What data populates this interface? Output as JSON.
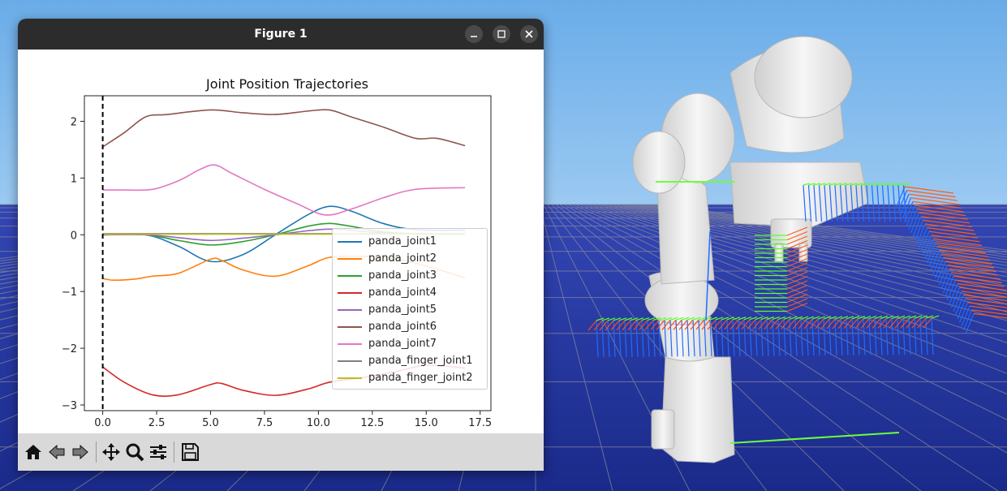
{
  "window": {
    "title": "Figure 1",
    "minimize_icon": "minimize-icon",
    "maximize_icon": "maximize-icon",
    "close_icon": "close-icon"
  },
  "toolbar": {
    "buttons": [
      "home-icon",
      "back-arrow-icon",
      "forward-arrow-icon",
      "pan-icon",
      "zoom-icon",
      "configure-subplots-icon",
      "save-icon"
    ]
  },
  "colors": {
    "sky_top": "#6aace8",
    "floor": "#2436a0",
    "grid": "#8c8c9c"
  },
  "chart_data": {
    "type": "line",
    "title": "Joint Position Trajectories",
    "xlim": [
      -0.85,
      18.0
    ],
    "ylim": [
      -3.1,
      2.45
    ],
    "xticks": [
      0.0,
      2.5,
      5.0,
      7.5,
      10.0,
      12.5,
      15.0,
      17.5
    ],
    "xtick_labels": [
      "0.0",
      "2.5",
      "5.0",
      "7.5",
      "10.0",
      "12.5",
      "15.0",
      "17.5"
    ],
    "yticks": [
      -3,
      -2,
      -1,
      0,
      1,
      2
    ],
    "ytick_labels": [
      "−3",
      "−2",
      "−1",
      "0",
      "1",
      "2"
    ],
    "vline_x": 0.0,
    "legend_position": "lower-right",
    "series": [
      {
        "name": "panda_joint1",
        "color": "#1f77b4",
        "x": [
          0.0,
          2.0,
          3.5,
          5.0,
          6.5,
          8.0,
          9.5,
          10.5,
          11.5,
          13.0,
          14.5,
          16.8
        ],
        "y": [
          0.0,
          0.0,
          -0.2,
          -0.47,
          -0.35,
          0.0,
          0.35,
          0.5,
          0.42,
          0.2,
          0.09,
          0.08
        ]
      },
      {
        "name": "panda_joint2",
        "color": "#ff7f0e",
        "x": [
          0.0,
          0.5,
          1.5,
          2.3,
          3.5,
          5.0,
          5.5,
          6.5,
          8.0,
          9.5,
          10.5,
          12.0,
          13.5,
          15.0,
          16.8
        ],
        "y": [
          -0.77,
          -0.8,
          -0.78,
          -0.73,
          -0.68,
          -0.43,
          -0.45,
          -0.62,
          -0.73,
          -0.55,
          -0.4,
          -0.38,
          -0.42,
          -0.55,
          -0.76
        ]
      },
      {
        "name": "panda_joint3",
        "color": "#2ca02c",
        "x": [
          0.0,
          2.0,
          3.5,
          5.0,
          6.5,
          8.0,
          9.5,
          10.5,
          11.5,
          13.0,
          14.5,
          16.8
        ],
        "y": [
          0.0,
          0.0,
          -0.1,
          -0.18,
          -0.12,
          0.0,
          0.15,
          0.2,
          0.15,
          0.05,
          0.02,
          0.02
        ]
      },
      {
        "name": "panda_joint4",
        "color": "#d62728",
        "x": [
          0.0,
          1.0,
          2.3,
          3.5,
          5.0,
          5.5,
          6.5,
          8.0,
          9.5,
          10.5,
          12.0,
          13.5,
          15.0,
          16.8
        ],
        "y": [
          -2.33,
          -2.6,
          -2.82,
          -2.82,
          -2.64,
          -2.62,
          -2.74,
          -2.83,
          -2.72,
          -2.6,
          -2.52,
          -2.42,
          -2.3,
          -2.35
        ]
      },
      {
        "name": "panda_joint5",
        "color": "#9467bd",
        "x": [
          0.0,
          2.0,
          3.5,
          5.0,
          6.5,
          8.0,
          9.5,
          10.5,
          11.5,
          13.0,
          14.5,
          16.8
        ],
        "y": [
          0.0,
          0.0,
          -0.05,
          -0.1,
          -0.06,
          0.0,
          0.07,
          0.1,
          0.08,
          0.03,
          0.01,
          0.01
        ]
      },
      {
        "name": "panda_joint6",
        "color": "#8c564b",
        "x": [
          0.0,
          1.0,
          2.0,
          3.0,
          5.0,
          6.5,
          8.0,
          9.5,
          10.5,
          11.5,
          13.0,
          14.5,
          15.5,
          16.8
        ],
        "y": [
          1.55,
          1.8,
          2.08,
          2.12,
          2.2,
          2.15,
          2.12,
          2.18,
          2.2,
          2.08,
          1.9,
          1.7,
          1.7,
          1.57
        ]
      },
      {
        "name": "panda_joint7",
        "color": "#e377c2",
        "x": [
          0.0,
          1.0,
          2.3,
          3.5,
          4.5,
          5.2,
          6.0,
          7.5,
          9.0,
          10.3,
          11.5,
          13.0,
          14.5,
          16.8
        ],
        "y": [
          0.79,
          0.79,
          0.8,
          0.95,
          1.15,
          1.23,
          1.08,
          0.8,
          0.55,
          0.35,
          0.45,
          0.65,
          0.8,
          0.83
        ]
      },
      {
        "name": "panda_finger_joint1",
        "color": "#7f7f7f",
        "x": [
          0.0,
          16.8
        ],
        "y": [
          0.02,
          0.02
        ]
      },
      {
        "name": "panda_finger_joint2",
        "color": "#bcbd22",
        "x": [
          0.0,
          16.8
        ],
        "y": [
          0.01,
          0.01
        ]
      }
    ]
  }
}
